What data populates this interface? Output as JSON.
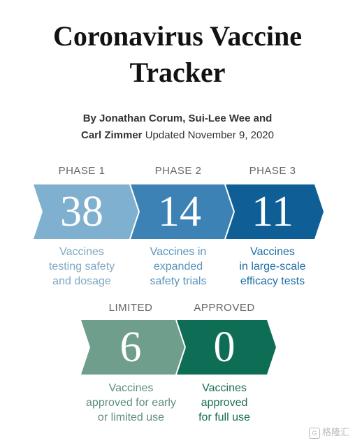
{
  "header": {
    "title_line1": "Coronavirus Vaccine",
    "title_line2": "Tracker",
    "byline_authors_line1": "By Jonathan Corum, Sui-Lee Wee and",
    "byline_authors_line2": "Carl Zimmer",
    "updated": "Updated November 9, 2020"
  },
  "phases": [
    {
      "label": "PHASE 1",
      "count": "38",
      "desc": [
        "Vaccines",
        "testing safety",
        "and dosage"
      ],
      "color": "#7fb0cf",
      "text_color": "#7fa8c4"
    },
    {
      "label": "PHASE 2",
      "count": "14",
      "desc": [
        "Vaccines in",
        "expanded",
        "safety trials"
      ],
      "color": "#3c82b5",
      "text_color": "#5b94bd"
    },
    {
      "label": "PHASE 3",
      "count": "11",
      "desc": [
        "Vaccines",
        "in large-scale",
        "efficacy tests"
      ],
      "color": "#0f5f96",
      "text_color": "#1e6fa6"
    }
  ],
  "approvals": [
    {
      "label": "LIMITED",
      "count": "6",
      "desc": [
        "Vaccines",
        "approved for early",
        "or limited use"
      ],
      "color": "#6f9e8c",
      "text_color": "#5e8f7d"
    },
    {
      "label": "APPROVED",
      "count": "0",
      "desc": [
        "Vaccines",
        "approved",
        "for full use"
      ],
      "color": "#0e6e55",
      "text_color": "#1b6e57"
    }
  ],
  "watermark": "格隆汇"
}
